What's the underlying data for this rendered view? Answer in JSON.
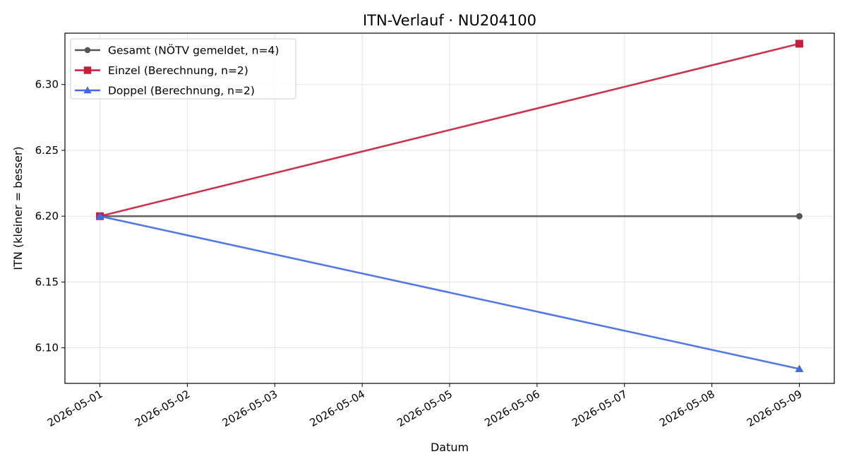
{
  "chart_data": {
    "type": "line",
    "title": "ITN-Verlauf · NU204100",
    "xlabel": "Datum",
    "ylabel": "ITN  (kleiner = besser)",
    "x": [
      "2026-05-01",
      "2026-05-09"
    ],
    "x_ticks": [
      "2026-05-01",
      "2026-05-02",
      "2026-05-03",
      "2026-05-04",
      "2026-05-05",
      "2026-05-06",
      "2026-05-07",
      "2026-05-08",
      "2026-05-09"
    ],
    "y_ticks": [
      "6.10",
      "6.15",
      "6.20",
      "6.25",
      "6.30"
    ],
    "ylim": [
      6.073,
      6.339
    ],
    "xlim": [
      "2026-04-30T14:24",
      "2026-05-09T09:36"
    ],
    "grid": true,
    "legend_position": "top-left",
    "series": [
      {
        "name": "Gesamt (NÖTV gemeldet, n=4)",
        "values": [
          6.2,
          6.2
        ],
        "color": "#555555",
        "marker": "circle"
      },
      {
        "name": "Einzel (Berechnung, n=2)",
        "values": [
          6.2,
          6.331
        ],
        "color": "#c41e3a",
        "marker": "square"
      },
      {
        "name": "Doppel (Berechnung, n=2)",
        "values": [
          6.2,
          6.084
        ],
        "color": "#4169e1",
        "marker": "triangle"
      }
    ]
  }
}
